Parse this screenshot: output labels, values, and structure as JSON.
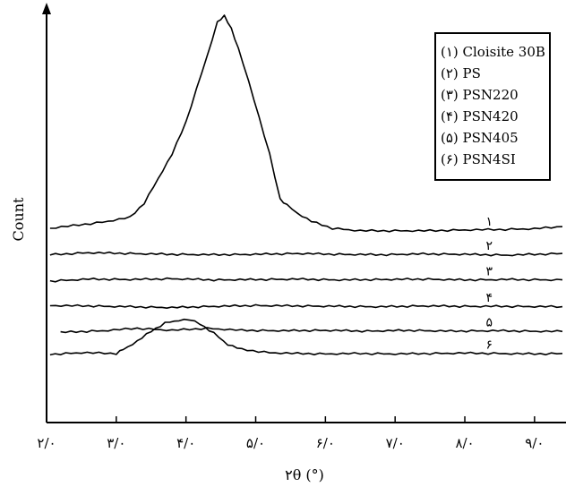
{
  "chart_data": {
    "type": "line",
    "xlabel": "۲θ (°)",
    "ylabel": "Count",
    "x_range": [
      2.0,
      9.4
    ],
    "y_range": [
      0,
      1
    ],
    "grid": false,
    "legend_position": "top-right",
    "x_ticks": [
      {
        "value": 2.0,
        "label": "۲/۰"
      },
      {
        "value": 3.0,
        "label": "۳/۰"
      },
      {
        "value": 4.0,
        "label": "۴/۰"
      },
      {
        "value": 5.0,
        "label": "۵/۰"
      },
      {
        "value": 6.0,
        "label": "۶/۰"
      },
      {
        "value": 7.0,
        "label": "۷/۰"
      },
      {
        "value": 8.0,
        "label": "۸/۰"
      },
      {
        "value": 9.0,
        "label": "۹/۰"
      }
    ],
    "legend": [
      "(۱) Cloisite 30B",
      "(۲) PS",
      "(۳) PSN220",
      "(۴) PSN420",
      "(۵) PSN405",
      "(۶) PSN4SI"
    ],
    "series": [
      {
        "name": "۱",
        "color": "#000000",
        "points": [
          [
            2.05,
            0.478
          ],
          [
            2.3,
            0.483
          ],
          [
            2.8,
            0.493
          ],
          [
            3.2,
            0.505
          ],
          [
            3.4,
            0.54
          ],
          [
            3.6,
            0.6
          ],
          [
            3.8,
            0.66
          ],
          [
            4.0,
            0.74
          ],
          [
            4.15,
            0.82
          ],
          [
            4.3,
            0.9
          ],
          [
            4.45,
            0.985
          ],
          [
            4.55,
            1.0
          ],
          [
            4.65,
            0.97
          ],
          [
            4.75,
            0.92
          ],
          [
            4.9,
            0.84
          ],
          [
            5.05,
            0.75
          ],
          [
            5.2,
            0.66
          ],
          [
            5.35,
            0.55
          ],
          [
            5.45,
            0.535
          ],
          [
            5.6,
            0.515
          ],
          [
            5.8,
            0.495
          ],
          [
            6.1,
            0.478
          ],
          [
            6.5,
            0.472
          ],
          [
            7.0,
            0.472
          ],
          [
            7.5,
            0.472
          ],
          [
            8.0,
            0.474
          ],
          [
            8.5,
            0.475
          ],
          [
            9.0,
            0.477
          ],
          [
            9.4,
            0.482
          ]
        ]
      },
      {
        "name": "۲",
        "color": "#000000",
        "points": [
          [
            2.05,
            0.413
          ],
          [
            2.6,
            0.418
          ],
          [
            3.2,
            0.416
          ],
          [
            3.8,
            0.414
          ],
          [
            4.4,
            0.413
          ],
          [
            5.0,
            0.414
          ],
          [
            5.6,
            0.416
          ],
          [
            6.2,
            0.414
          ],
          [
            6.8,
            0.413
          ],
          [
            7.4,
            0.415
          ],
          [
            8.0,
            0.414
          ],
          [
            8.6,
            0.412
          ],
          [
            9.4,
            0.416
          ]
        ]
      },
      {
        "name": "۳",
        "color": "#000000",
        "points": [
          [
            2.05,
            0.348
          ],
          [
            2.6,
            0.353
          ],
          [
            3.2,
            0.352
          ],
          [
            3.8,
            0.354
          ],
          [
            4.4,
            0.351
          ],
          [
            5.0,
            0.352
          ],
          [
            5.6,
            0.353
          ],
          [
            6.2,
            0.351
          ],
          [
            6.8,
            0.352
          ],
          [
            7.4,
            0.353
          ],
          [
            8.0,
            0.351
          ],
          [
            8.6,
            0.352
          ],
          [
            9.4,
            0.351
          ]
        ]
      },
      {
        "name": "۴",
        "color": "#000000",
        "points": [
          [
            2.05,
            0.288
          ],
          [
            2.6,
            0.287
          ],
          [
            3.2,
            0.285
          ],
          [
            3.8,
            0.283
          ],
          [
            4.4,
            0.286
          ],
          [
            5.0,
            0.288
          ],
          [
            5.6,
            0.287
          ],
          [
            6.2,
            0.286
          ],
          [
            6.8,
            0.285
          ],
          [
            7.4,
            0.287
          ],
          [
            8.0,
            0.286
          ],
          [
            8.6,
            0.286
          ],
          [
            9.4,
            0.285
          ]
        ]
      },
      {
        "name": "۵",
        "color": "#000000",
        "points": [
          [
            2.2,
            0.222
          ],
          [
            2.8,
            0.226
          ],
          [
            3.3,
            0.232
          ],
          [
            3.8,
            0.227
          ],
          [
            4.3,
            0.232
          ],
          [
            4.8,
            0.227
          ],
          [
            5.4,
            0.226
          ],
          [
            6.0,
            0.227
          ],
          [
            6.6,
            0.225
          ],
          [
            7.2,
            0.227
          ],
          [
            7.8,
            0.225
          ],
          [
            8.4,
            0.226
          ],
          [
            9.4,
            0.224
          ]
        ]
      },
      {
        "name": "۶",
        "color": "#000000",
        "points": [
          [
            2.05,
            0.168
          ],
          [
            2.5,
            0.172
          ],
          [
            3.0,
            0.17
          ],
          [
            3.1,
            0.18
          ],
          [
            3.3,
            0.2
          ],
          [
            3.5,
            0.225
          ],
          [
            3.7,
            0.245
          ],
          [
            3.9,
            0.252
          ],
          [
            4.05,
            0.253
          ],
          [
            4.2,
            0.243
          ],
          [
            4.4,
            0.22
          ],
          [
            4.6,
            0.192
          ],
          [
            4.8,
            0.18
          ],
          [
            5.2,
            0.172
          ],
          [
            5.6,
            0.17
          ],
          [
            6.0,
            0.169
          ],
          [
            6.5,
            0.17
          ],
          [
            7.0,
            0.169
          ],
          [
            7.5,
            0.17
          ],
          [
            8.0,
            0.171
          ],
          [
            8.5,
            0.17
          ],
          [
            9.0,
            0.169
          ],
          [
            9.4,
            0.17
          ]
        ]
      }
    ]
  }
}
